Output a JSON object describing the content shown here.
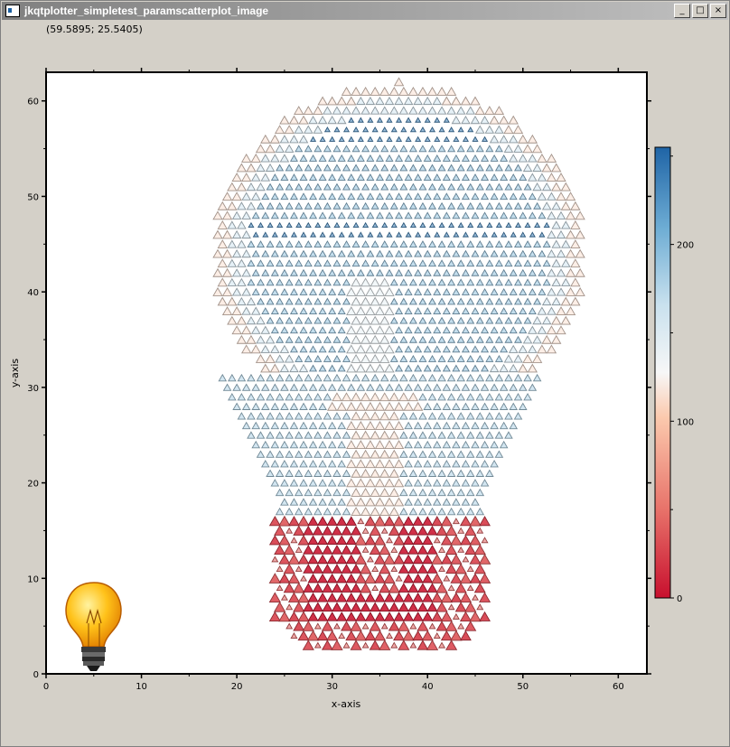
{
  "window": {
    "title": "jkqtplotter_simpletest_paramscatterplot_image",
    "minimize_label": "_",
    "maximize_label": "□",
    "close_label": "×"
  },
  "coordinate_readout": "(59.5895; 25.5405)",
  "colors": {
    "colorbar_low": "#c8102e",
    "colorbar_mid": "#f7f7f7",
    "colorbar_high": "#1f64a6",
    "bulb_body": "#f5a800",
    "bulb_base": "#2a2a2a"
  },
  "chart_data": {
    "type": "scatter",
    "xlabel": "x-axis",
    "ylabel": "y-axis",
    "xlim": [
      0,
      63
    ],
    "ylim": [
      0,
      63
    ],
    "x_ticks": [
      0,
      10,
      20,
      30,
      40,
      50,
      60
    ],
    "y_ticks": [
      0,
      10,
      20,
      30,
      40,
      50,
      60
    ],
    "grid": false,
    "marker": "triangle",
    "colormap": "red-white-blue",
    "colorbar": {
      "min": 0,
      "max": 255,
      "ticks": [
        0,
        100,
        200
      ]
    },
    "image_inset": {
      "icon": "lightbulb-icon"
    }
  }
}
